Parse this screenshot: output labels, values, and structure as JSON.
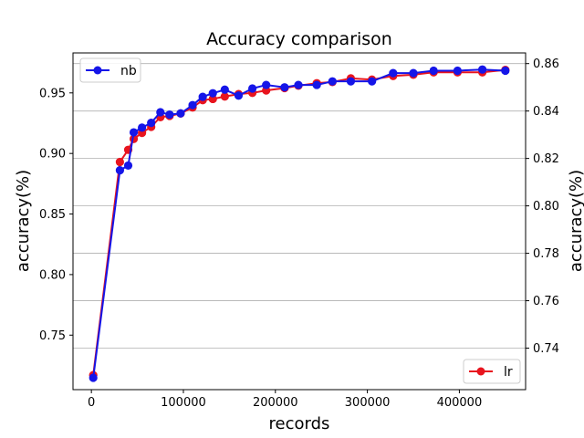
{
  "chart_data": {
    "type": "line",
    "title": "Accuracy comparison",
    "xlabel": "records",
    "ylabel_left": "accuracy(%)",
    "ylabel_right": "accuracy(%)",
    "xlim": [
      -20000,
      472000
    ],
    "ylim_left": [
      0.705,
      0.983
    ],
    "ylim_right": [
      0.7225,
      0.8645
    ],
    "x_ticks": [
      0,
      100000,
      200000,
      300000,
      400000
    ],
    "x_tick_labels": [
      "0",
      "100000",
      "200000",
      "300000",
      "400000"
    ],
    "y_left_ticks": [
      0.75,
      0.8,
      0.85,
      0.9,
      0.95
    ],
    "y_left_tick_labels": [
      "0.75",
      "0.80",
      "0.85",
      "0.90",
      "0.95"
    ],
    "y_right_ticks": [
      0.74,
      0.76,
      0.78,
      0.8,
      0.82,
      0.84,
      0.86
    ],
    "y_right_tick_labels": [
      "0.74",
      "0.76",
      "0.78",
      "0.80",
      "0.82",
      "0.84",
      "0.86"
    ],
    "grid": "horizontal, right axis",
    "series": [
      {
        "name": "lr",
        "axis": "left",
        "color": "#e8141e",
        "legend_position": "bottom-right",
        "x": [
          2000,
          31000,
          40000,
          46000,
          55000,
          65000,
          75000,
          85000,
          97000,
          110000,
          121000,
          132000,
          145000,
          160000,
          175000,
          190000,
          210000,
          225000,
          245000,
          262000,
          282000,
          305000,
          328000,
          350000,
          372000,
          398000,
          425000,
          450000
        ],
        "values": [
          0.717,
          0.893,
          0.903,
          0.912,
          0.917,
          0.922,
          0.93,
          0.931,
          0.933,
          0.938,
          0.944,
          0.945,
          0.947,
          0.949,
          0.95,
          0.952,
          0.954,
          0.956,
          0.958,
          0.959,
          0.962,
          0.961,
          0.964,
          0.965,
          0.967,
          0.967,
          0.967,
          0.969
        ]
      },
      {
        "name": "nb",
        "axis": "right",
        "color": "#1515e8",
        "legend_position": "top-left",
        "x": [
          2000,
          31000,
          40000,
          46000,
          55000,
          65000,
          75000,
          85000,
          97000,
          110000,
          121000,
          132000,
          145000,
          160000,
          175000,
          190000,
          210000,
          225000,
          245000,
          262000,
          282000,
          305000,
          328000,
          350000,
          372000,
          398000,
          425000,
          450000
        ],
        "values": [
          0.7275,
          0.815,
          0.817,
          0.831,
          0.833,
          0.835,
          0.8395,
          0.8385,
          0.839,
          0.8425,
          0.846,
          0.8475,
          0.849,
          0.8465,
          0.8495,
          0.851,
          0.85,
          0.851,
          0.851,
          0.8525,
          0.8525,
          0.8525,
          0.856,
          0.856,
          0.857,
          0.857,
          0.8575,
          0.857
        ]
      }
    ]
  }
}
